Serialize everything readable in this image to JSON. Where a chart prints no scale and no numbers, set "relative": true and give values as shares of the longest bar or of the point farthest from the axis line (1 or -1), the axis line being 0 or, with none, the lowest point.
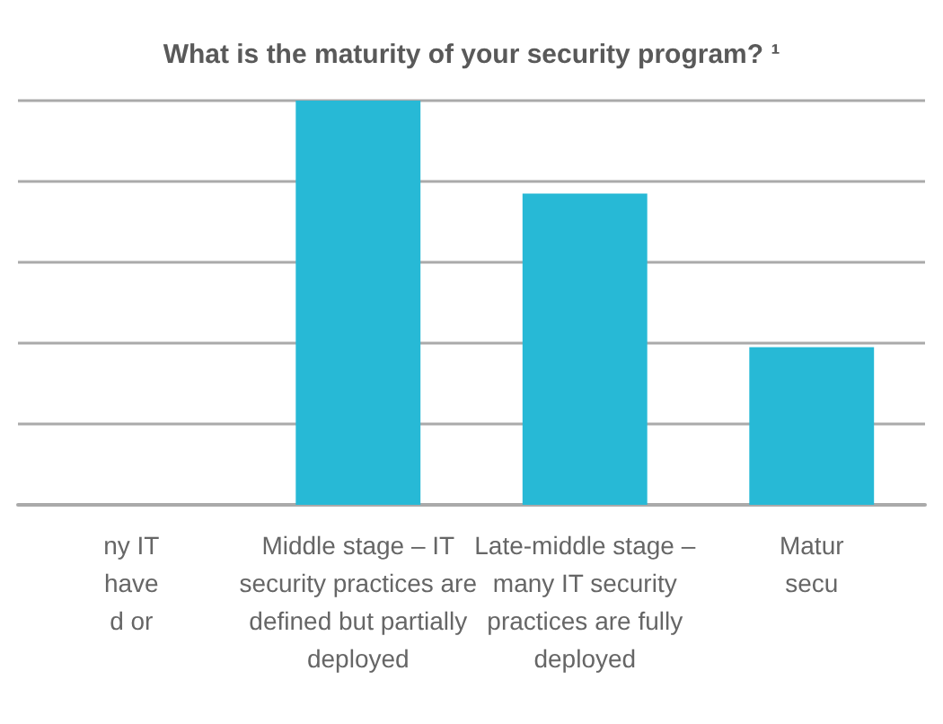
{
  "chart_data": {
    "type": "bar",
    "title": "What is the maturity of your security program? ¹",
    "categories": [
      "ny IT\nhave\nd or",
      "Middle stage – IT\nsecurity practices are\ndefined but partially\ndeployed",
      "Late-middle stage –\nmany IT security\npractices are fully\ndeployed",
      "Matur\nsecu"
    ],
    "values": [
      null,
      1,
      0.77,
      0.39
    ],
    "color": "#27b9d6",
    "relative": true,
    "grid": "y"
  }
}
